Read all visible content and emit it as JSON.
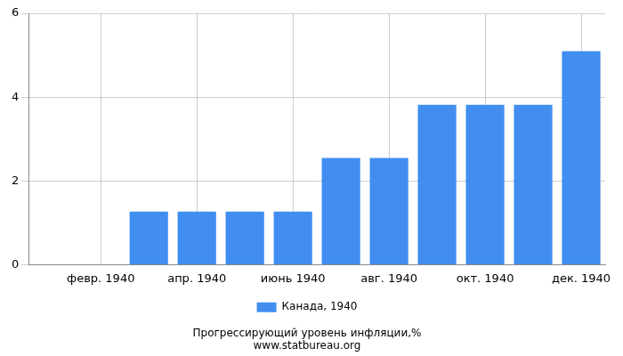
{
  "chart_data": {
    "type": "bar",
    "title": "Прогрессирующий уровень инфляции,%",
    "subtitle": "www.statbureau.org",
    "categories": [
      null,
      "февр. 1940",
      null,
      "апр. 1940",
      null,
      "июнь 1940",
      null,
      "авг. 1940",
      null,
      "окт. 1940",
      null,
      "дек. 1940"
    ],
    "series": [
      {
        "name": "Канада, 1940",
        "color": "#418ef0",
        "values": [
          0,
          0,
          1.27,
          1.27,
          1.27,
          1.27,
          2.55,
          2.55,
          3.82,
          3.82,
          3.82,
          5.1
        ]
      }
    ],
    "ylim": [
      0,
      6
    ],
    "yticks": [
      0,
      2,
      4,
      6
    ],
    "grid": true,
    "legend": "bottom"
  }
}
